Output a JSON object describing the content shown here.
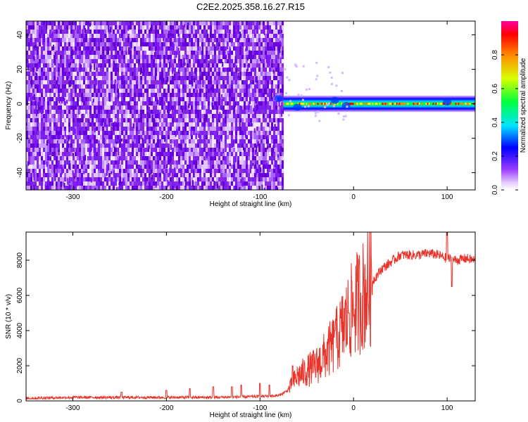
{
  "figure": {
    "title": "C2E2.2025.358.16.27.R15"
  },
  "chart_data": [
    {
      "type": "heatmap",
      "xlabel": "Height of straight line (km)",
      "ylabel": "Frequency (Hz)",
      "xlim": [
        -350,
        130
      ],
      "ylim": [
        -50,
        48
      ],
      "xticks": [
        -300,
        -200,
        -100,
        0,
        100
      ],
      "yticks": [
        -40,
        -20,
        0,
        20,
        40
      ],
      "colorbar": {
        "label": "Normalized spectral amplitude",
        "range": [
          0,
          1
        ],
        "ticks": [
          "0.0",
          "0.2",
          "0.4",
          "0.6",
          "0.8"
        ],
        "colormap": [
          "#ffffff",
          "#8000ff",
          "#0000ff",
          "#00ffff",
          "#00ff00",
          "#ffff00",
          "#ff0000",
          "#ff00ff"
        ]
      },
      "regions": [
        {
          "x_range": [
            -350,
            -75
          ],
          "y_range": [
            -50,
            48
          ],
          "description_level": 0.15,
          "color": "#8a2be2"
        },
        {
          "x_range": [
            -75,
            130
          ],
          "y_center": 0,
          "halfwidth": 3,
          "peak_level": 1.0
        }
      ]
    },
    {
      "type": "line",
      "xlabel": "Height of straight line (km)",
      "ylabel": "SNR (10 * v/v)",
      "xlim": [
        -350,
        130
      ],
      "ylim": [
        0,
        9600
      ],
      "xticks": [
        -300,
        -200,
        -100,
        0,
        100
      ],
      "yticks": [
        0,
        2000,
        4000,
        6000,
        8000
      ],
      "series": [
        {
          "color": "#e8332a",
          "x": [
            -350,
            -300,
            -250,
            -200,
            -150,
            -100,
            -80,
            -70,
            -60,
            -50,
            -40,
            -30,
            -20,
            -10,
            0,
            10,
            20,
            30,
            40,
            50,
            60,
            70,
            80,
            90,
            100,
            110,
            120,
            130
          ],
          "y": [
            150,
            200,
            200,
            200,
            200,
            250,
            300,
            600,
            1400,
            1700,
            2000,
            2600,
            3300,
            4300,
            5300,
            6000,
            6800,
            7500,
            7900,
            8300,
            8300,
            8300,
            8400,
            8300,
            8100,
            8000,
            8100,
            8000
          ]
        }
      ],
      "spikes": [
        {
          "x": -248,
          "y": 500
        },
        {
          "x": -200,
          "y": 600
        },
        {
          "x": -175,
          "y": 700
        },
        {
          "x": -150,
          "y": 800
        },
        {
          "x": -130,
          "y": 800
        },
        {
          "x": -120,
          "y": 900
        },
        {
          "x": -100,
          "y": 1000
        },
        {
          "x": -90,
          "y": 900
        },
        {
          "x": -65,
          "y": 2000
        },
        {
          "x": -20,
          "y": 4000
        },
        {
          "x": -5,
          "y": 5000
        },
        {
          "x": 100,
          "y": 9600
        },
        {
          "x": 105,
          "y": 6500
        }
      ]
    }
  ]
}
